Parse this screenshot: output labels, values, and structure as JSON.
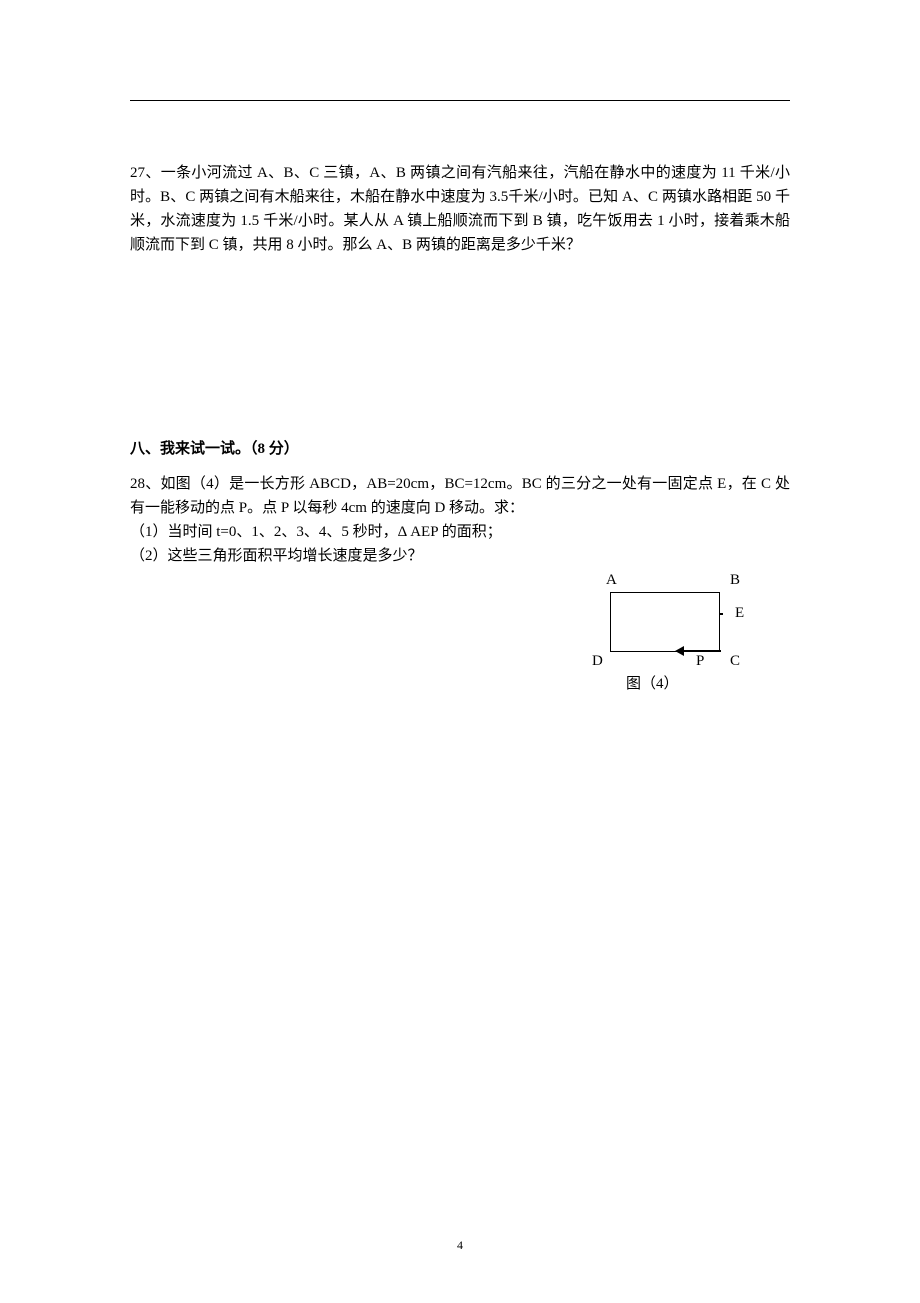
{
  "problem27": {
    "text": "27、一条小河流过 A、B、C 三镇，A、B 两镇之间有汽船来往，汽船在静水中的速度为 11 千米/小时。B、C 两镇之间有木船来往，木船在静水中速度为   3.5千米/小时。已知 A、C 两镇水路相距 50 千米，水流速度为 1.5 千米/小时。某人从 A 镇上船顺流而下到 B 镇，吃午饭用去 1 小时，接着乘木船顺流而下到 C 镇，共用 8 小时。那么 A、B 两镇的距离是多少千米？"
  },
  "sectionEight": {
    "title": "八、我来试一试。（8 分）"
  },
  "problem28": {
    "line1": "28、如图（4）是一长方形 ABCD，AB=20cm，BC=12cm。BC 的三分之一处有一固定点 E，在 C 处有一能移动的点 P。点 P 以每秒 4cm 的速度向 D 移动。求：",
    "line2": "（1）当时间 t=0、1、2、3、4、5 秒时，Δ AEP 的面积；",
    "line3": "（2）这些三角形面积平均增长速度是多少？"
  },
  "figure": {
    "labelA": "A",
    "labelB": "B",
    "labelE": "E",
    "labelD": "D",
    "labelP": "P",
    "labelC": "C",
    "caption": "图（4）"
  },
  "pageNumber": "4"
}
